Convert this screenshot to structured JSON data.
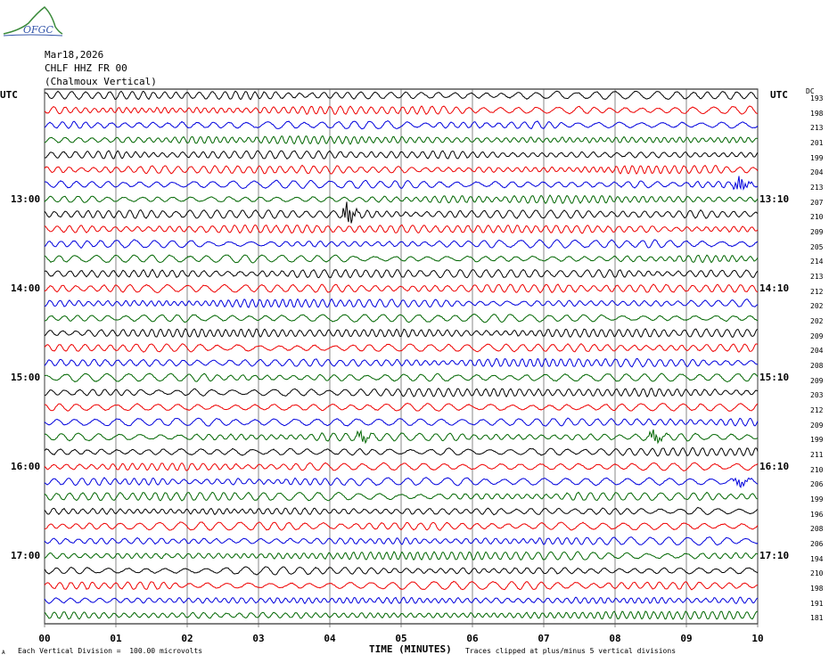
{
  "header": {
    "logo_text": "OFGC",
    "date": "Mar18,2026",
    "station": "CHLF HHZ FR 00",
    "location": "(Chalmoux Vertical)",
    "utc_left": "UTC",
    "utc_right": "UTC",
    "dc_label": "DC"
  },
  "colors": [
    "#000000",
    "#ee0000",
    "#0000dd",
    "#006600"
  ],
  "left_hour_labels": [
    {
      "label": "13:00",
      "row": 7
    },
    {
      "label": "14:00",
      "row": 13
    },
    {
      "label": "15:00",
      "row": 19
    },
    {
      "label": "16:00",
      "row": 25
    },
    {
      "label": "17:00",
      "row": 31
    }
  ],
  "right_hour_labels": [
    {
      "label": "13:10",
      "row": 7
    },
    {
      "label": "14:10",
      "row": 13
    },
    {
      "label": "15:10",
      "row": 19
    },
    {
      "label": "16:10",
      "row": 25
    },
    {
      "label": "17:10",
      "row": 31
    }
  ],
  "dc_offsets": [
    "193",
    "198",
    "213",
    "201",
    "199",
    "204",
    "213",
    "207",
    "210",
    "209",
    "205",
    "214",
    "213",
    "212",
    "202",
    "202",
    "209",
    "204",
    "208",
    "209",
    "203",
    "212",
    "209",
    "199",
    "211",
    "210",
    "206",
    "199",
    "196",
    "208",
    "206",
    "194",
    "210",
    "198",
    "191",
    "181"
  ],
  "footer": {
    "left_note": "Each Vertical Division =  100.00 microvolts",
    "right_note": "Traces clipped at plus/minus 5 vertical divisions",
    "small_mark": "A"
  },
  "chart_data": {
    "type": "line",
    "title": "Mar18,2026 CHLF HHZ FR 00 (Chalmoux Vertical)",
    "xlabel": "TIME (MINUTES)",
    "ylabel": "UTC",
    "x_ticks": [
      "00",
      "01",
      "02",
      "03",
      "04",
      "05",
      "06",
      "07",
      "08",
      "09",
      "10"
    ],
    "xlim": [
      0,
      10
    ],
    "trace_count": 36,
    "minutes_per_trace": 10,
    "grid": true,
    "events": [
      {
        "row": 6,
        "minute": 9.7,
        "amp": 9
      },
      {
        "row": 8,
        "minute": 4.2,
        "amp": 13
      },
      {
        "row": 23,
        "minute": 4.4,
        "amp": 6
      },
      {
        "row": 23,
        "minute": 8.5,
        "amp": 7
      },
      {
        "row": 26,
        "minute": 9.7,
        "amp": 5
      }
    ]
  }
}
